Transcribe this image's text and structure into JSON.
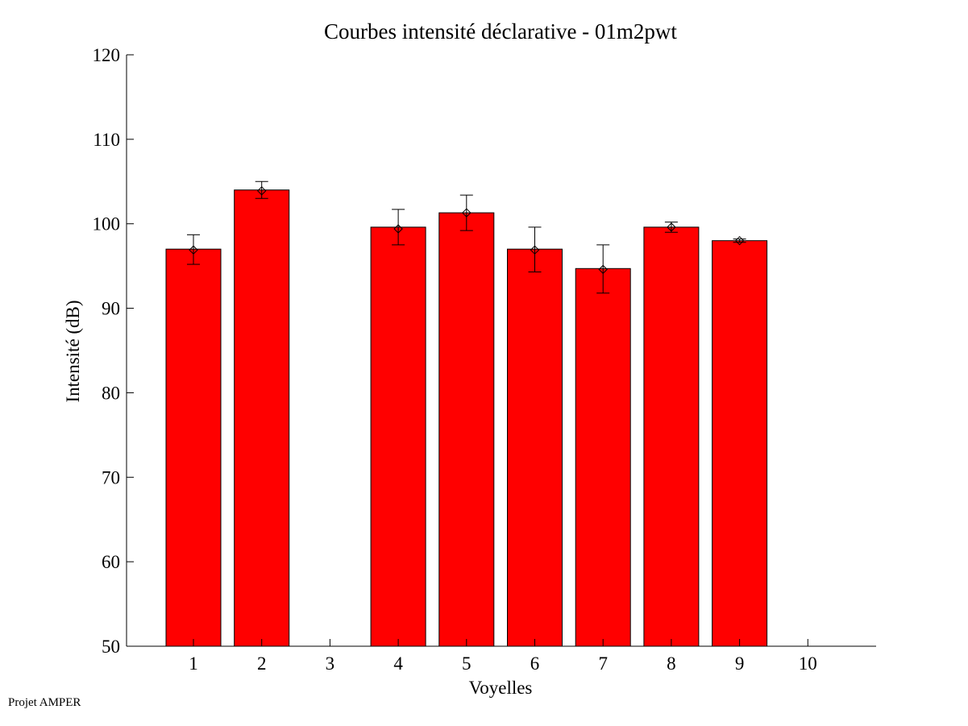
{
  "chart_data": {
    "type": "bar",
    "title": "Courbes intensité déclarative - 01m2pwt",
    "xlabel": "Voyelles",
    "ylabel": "Intensité (dB)",
    "categories": [
      "1",
      "2",
      "3",
      "4",
      "5",
      "6",
      "7",
      "8",
      "9",
      "10"
    ],
    "values": [
      97.0,
      104.0,
      null,
      99.6,
      101.3,
      97.0,
      94.7,
      99.6,
      98.0,
      null
    ],
    "error_low": [
      95.2,
      103.0,
      null,
      97.5,
      99.2,
      94.3,
      91.8,
      99.0,
      97.8,
      null
    ],
    "error_high": [
      98.7,
      105.0,
      null,
      101.7,
      103.4,
      99.6,
      97.5,
      100.2,
      98.2,
      null
    ],
    "markers": [
      96.9,
      103.9,
      null,
      99.4,
      101.3,
      96.9,
      94.6,
      99.6,
      98.0,
      null
    ],
    "ylim": [
      50,
      120
    ],
    "yticks": [
      50,
      60,
      70,
      80,
      90,
      100,
      110,
      120
    ],
    "bar_color": "#ff0000",
    "grid": false,
    "legend": "none"
  },
  "footer": {
    "text": "Projet AMPER"
  }
}
